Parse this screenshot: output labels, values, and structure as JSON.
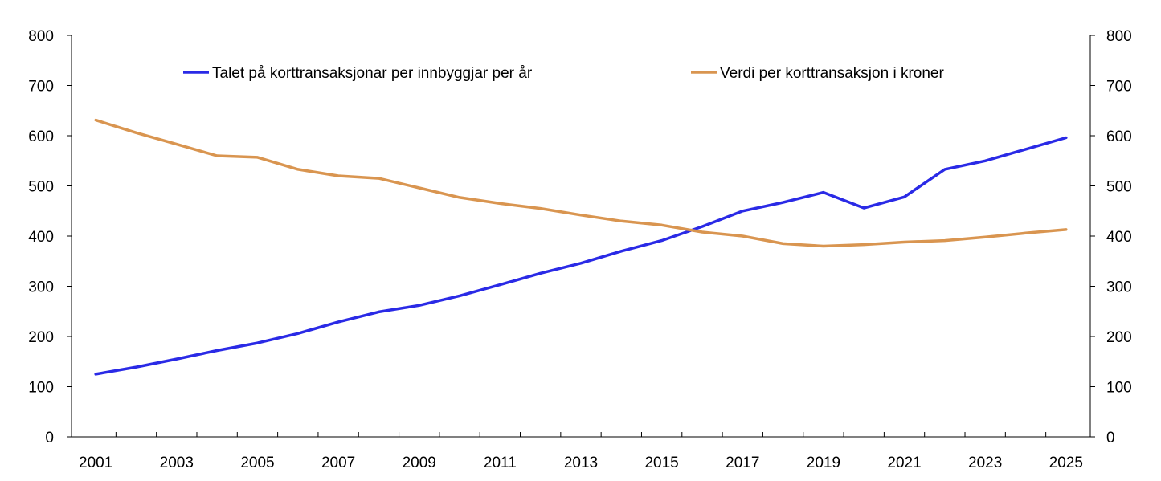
{
  "chart_data": {
    "type": "line",
    "x": [
      2001,
      2002,
      2003,
      2004,
      2005,
      2006,
      2007,
      2008,
      2009,
      2010,
      2011,
      2012,
      2013,
      2014,
      2015,
      2016,
      2017,
      2018,
      2019,
      2020,
      2021,
      2022,
      2023,
      2024,
      2025
    ],
    "x_tick_labels": [
      "2001",
      "2003",
      "2005",
      "2007",
      "2009",
      "2011",
      "2013",
      "2015",
      "2017",
      "2019",
      "2021",
      "2023",
      "2025"
    ],
    "ylim_left": [
      0,
      800
    ],
    "ylim_right": [
      0,
      800
    ],
    "y_ticks": [
      0,
      100,
      200,
      300,
      400,
      500,
      600,
      700,
      800
    ],
    "y_tick_labels": [
      "0",
      "100",
      "200",
      "300",
      "400",
      "500",
      "600",
      "700",
      "800"
    ],
    "grid": false,
    "legend_position": "top",
    "series": [
      {
        "name": "Talet på korttransaksjonar per innbyggjar per år",
        "color": "#2a2ae6",
        "axis": "left",
        "values": [
          125,
          139,
          155,
          172,
          187,
          206,
          229,
          249,
          262,
          281,
          303,
          326,
          346,
          370,
          391,
          419,
          450,
          467,
          487,
          456,
          478,
          533,
          550,
          573,
          596
        ]
      },
      {
        "name": "Verdi per korttransaksjon i kroner",
        "color": "#d99550",
        "axis": "right",
        "values": [
          631,
          606,
          583,
          560,
          557,
          533,
          520,
          515,
          496,
          477,
          465,
          455,
          442,
          430,
          422,
          408,
          400,
          385,
          380,
          383,
          388,
          391,
          398,
          406,
          413
        ]
      }
    ]
  }
}
